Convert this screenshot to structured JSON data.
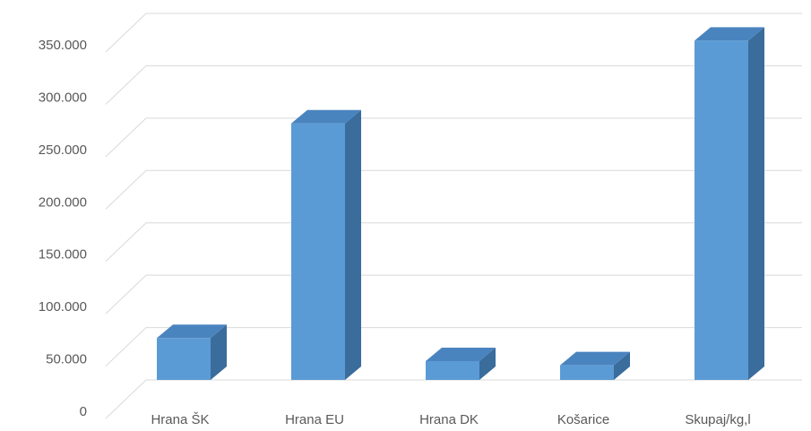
{
  "chart_data": {
    "type": "bar",
    "style": "3d-column",
    "categories": [
      "Hrana ŠK",
      "Hrana EU",
      "Hrana DK",
      "Košarice",
      "Skupaj/kg,l"
    ],
    "values": [
      40000,
      245000,
      18000,
      14000,
      324000
    ],
    "ylim": [
      0,
      350000
    ],
    "yticks": [
      0,
      50000,
      100000,
      150000,
      200000,
      250000,
      300000,
      350000
    ],
    "ytick_labels": [
      "0",
      "50.000",
      "100.000",
      "150.000",
      "200.000",
      "250.000",
      "300.000",
      "350.000"
    ],
    "grid": true,
    "legend": "none",
    "colors": {
      "front": "#5b9bd5",
      "top": "#4a84bf",
      "side": "#3a6c9c",
      "grid": "#d9d9d9"
    }
  }
}
